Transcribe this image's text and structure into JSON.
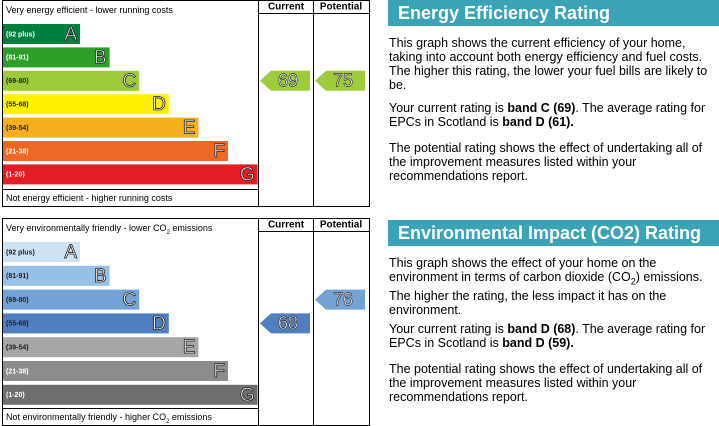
{
  "energy": {
    "top_label": "Very energy efficient - lower running costs",
    "bottom_label": "Not energy efficient - higher running costs",
    "col_current": "Current",
    "col_potential": "Potential",
    "bands": [
      {
        "range": "(92 plus)",
        "letter": "A",
        "color": "#007f3d",
        "text_color": "#ffffff"
      },
      {
        "range": "(81-91)",
        "letter": "B",
        "color": "#2c9f29",
        "text_color": "#ffffff"
      },
      {
        "range": "(69-80)",
        "letter": "C",
        "color": "#9dcb3c",
        "text_color": "#222222"
      },
      {
        "range": "(55-68)",
        "letter": "D",
        "color": "#fff200",
        "text_color": "#222222"
      },
      {
        "range": "(39-54)",
        "letter": "E",
        "color": "#f7af1d",
        "text_color": "#222222"
      },
      {
        "range": "(21-38)",
        "letter": "F",
        "color": "#ed6823",
        "text_color": "#ffffff"
      },
      {
        "range": "(1-20)",
        "letter": "G",
        "color": "#e31d23",
        "text_color": "#ffffff"
      }
    ],
    "current": "69",
    "potential": "75",
    "title": "Energy Efficiency Rating",
    "p1": "This graph shows the current efficiency of your home, taking into account both energy efficiency and fuel costs. The higher this rating, the lower your fuel bills are likely to be.",
    "p2a": "Your current rating is ",
    "p2b": "band C (69)",
    "p2c": ". The average rating for EPCs in Scotland is ",
    "p2d": "band D (61).",
    "p3": "The potential rating shows the effect of undertaking all of the improvement measures listed within your recommendations report."
  },
  "environment": {
    "top_label_a": "Very environmentally friendly - lower CO",
    "top_label_sub": "2",
    "top_label_b": " emissions",
    "bottom_label_a": "Not environmentally friendly - higher CO",
    "bottom_label_sub": "2",
    "bottom_label_b": " emissions",
    "col_current": "Current",
    "col_potential": "Potential",
    "bands": [
      {
        "range": "(92 plus)",
        "letter": "A",
        "color": "#cde3f4",
        "text_color": "#222222"
      },
      {
        "range": "(81-91)",
        "letter": "B",
        "color": "#97c0e6",
        "text_color": "#222222"
      },
      {
        "range": "(69-80)",
        "letter": "C",
        "color": "#73a2d6",
        "text_color": "#222222"
      },
      {
        "range": "(55-68)",
        "letter": "D",
        "color": "#4f7fc0",
        "text_color": "#222222"
      },
      {
        "range": "(39-54)",
        "letter": "E",
        "color": "#a6a6a6",
        "text_color": "#222222"
      },
      {
        "range": "(21-38)",
        "letter": "F",
        "color": "#8c8c8c",
        "text_color": "#ffffff"
      },
      {
        "range": "(1-20)",
        "letter": "G",
        "color": "#6e6e6e",
        "text_color": "#ffffff"
      }
    ],
    "current": "68",
    "potential": "76",
    "title": "Environmental Impact (CO2) Rating",
    "p1a": "This graph shows the effect of your home on the environment in terms of carbon dioxide (CO",
    "p1sub": "2",
    "p1b": ") emissions. The higher the rating, the less impact it has on the environment.",
    "p2a": "Your current rating is ",
    "p2b": "band D (68)",
    "p2c": ". The average rating for EPCs in Scotland is ",
    "p2d": "band D (59).",
    "p3": "The potential rating shows the effect of undertaking all of the improvement measures listed within your recommendations report."
  }
}
